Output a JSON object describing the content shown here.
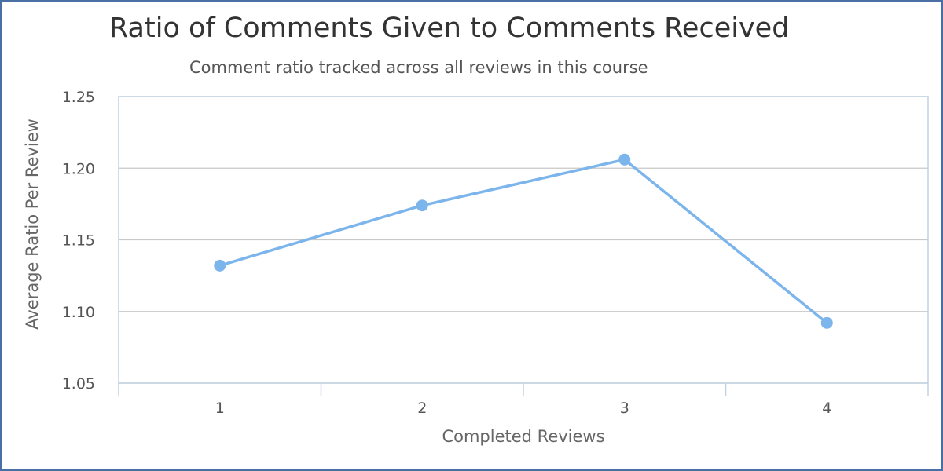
{
  "chart_data": {
    "type": "line",
    "title": "Ratio of Comments Given to Comments Received",
    "subtitle": "Comment ratio tracked across all reviews in this course",
    "xlabel": "Completed Reviews",
    "ylabel": "Average Ratio Per Review",
    "categories": [
      "1",
      "2",
      "3",
      "4"
    ],
    "series": [
      {
        "values": [
          1.132,
          1.174,
          1.206,
          1.092
        ]
      }
    ],
    "ylim": [
      1.05,
      1.25
    ],
    "yticks": [
      "1.05",
      "1.10",
      "1.15",
      "1.20",
      "1.25"
    ],
    "grid": true,
    "legend": "none",
    "colors": {
      "series": "#7cb5ec",
      "grid": "#c8c8c8",
      "axis": "#c0d0e0"
    }
  }
}
